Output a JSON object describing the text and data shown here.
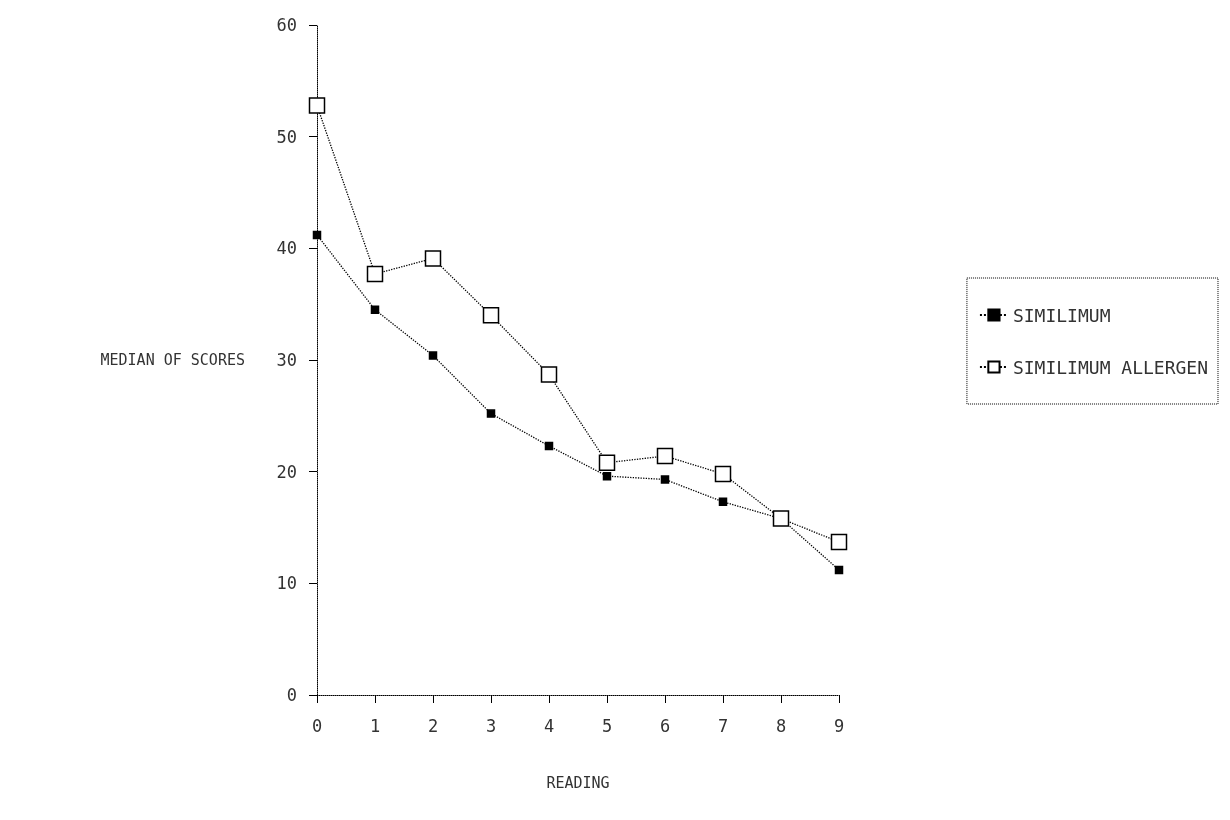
{
  "chart_data": {
    "type": "line",
    "xlabel": "READING",
    "ylabel": "MEDIAN OF SCORES",
    "x": [
      0,
      1,
      2,
      3,
      4,
      5,
      6,
      7,
      8,
      9
    ],
    "xlim": [
      0,
      9
    ],
    "xticks": [
      0,
      1,
      2,
      3,
      4,
      5,
      6,
      7,
      8,
      9
    ],
    "ylim": [
      0,
      60
    ],
    "yticks": [
      0,
      10,
      20,
      30,
      40,
      50,
      60
    ],
    "series": [
      {
        "name": "SIMILIMUM",
        "color": "#000000",
        "values": [
          41.2,
          34.5,
          30.4,
          25.2,
          22.3,
          19.6,
          19.3,
          17.3,
          15.8,
          11.2
        ]
      },
      {
        "name": "SIMILIMUM ALLERGEN",
        "color": "#000000",
        "values": [
          52.8,
          37.7,
          39.1,
          34.0,
          28.7,
          20.8,
          21.4,
          19.8,
          15.8,
          13.7
        ]
      }
    ],
    "grid": false,
    "legend": "right",
    "marker": "square",
    "line_style": "dotted"
  }
}
